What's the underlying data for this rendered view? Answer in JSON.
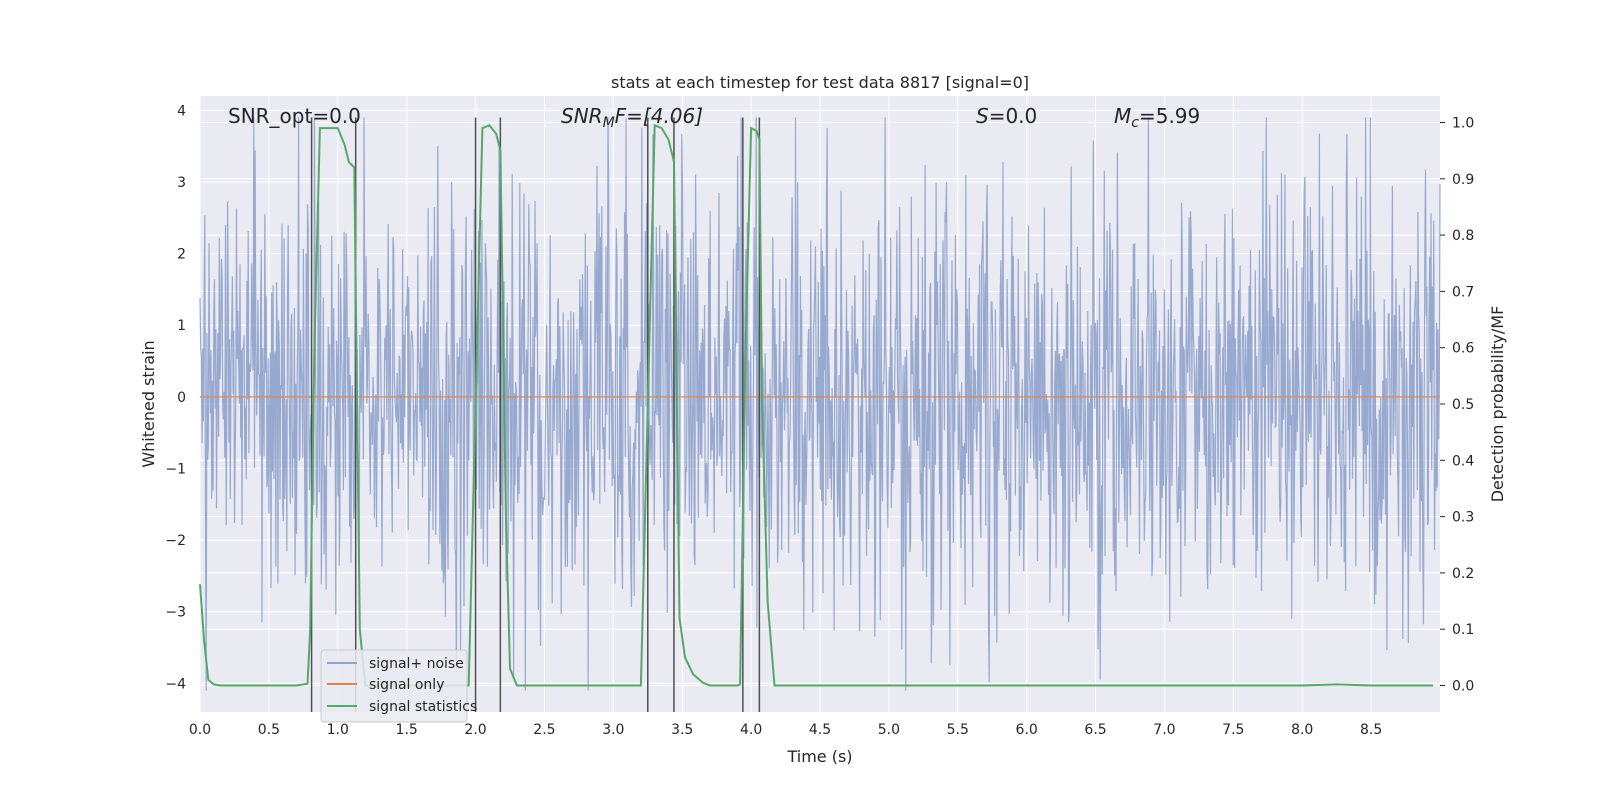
{
  "chart_data": {
    "type": "line",
    "title": "stats at each timestep for test data 8817 [signal=0]",
    "xlabel": "Time (s)",
    "ylabel": "Whitened strain",
    "y2label": "Detection probability/MF",
    "xlim": [
      0,
      9.0
    ],
    "ylim": [
      -4.4,
      4.2
    ],
    "y2lim": [
      -0.047,
      1.047
    ],
    "xticks": [
      "0.0",
      "0.5",
      "1.0",
      "1.5",
      "2.0",
      "2.5",
      "3.0",
      "3.5",
      "4.0",
      "4.5",
      "5.0",
      "5.5",
      "6.0",
      "6.5",
      "7.0",
      "7.5",
      "8.0",
      "8.5"
    ],
    "yticks": [
      "4",
      "3",
      "2",
      "1",
      "0",
      "−1",
      "−2",
      "−3",
      "−4"
    ],
    "y2ticks": [
      "1.0",
      "0.9",
      "0.8",
      "0.7",
      "0.6",
      "0.5",
      "0.4",
      "0.3",
      "0.2",
      "0.1",
      "0.0"
    ],
    "grid": true,
    "legend_position": "lower-left",
    "colors": {
      "noise": "#8fa2cc",
      "signal": "#dd8452",
      "stats": "#55a868",
      "vline": "#505050",
      "bg": "#eaeaf2"
    },
    "annotations": {
      "snr_opt": "SNR_opt=0.0",
      "snr_mf_main": "SNR",
      "snr_mf_sub": "M",
      "snr_mf_rest": "F=[4.06]",
      "s_main": "S",
      "s_rest": "=0.0",
      "mc_main": "M",
      "mc_sub": "c",
      "mc_rest": "=5.99"
    },
    "series": [
      {
        "name": "signal+ noise",
        "kind": "noise",
        "amplitude": 1.5,
        "seed": 8817
      },
      {
        "name": "signal only",
        "kind": "flat",
        "y": 0
      },
      {
        "name": "signal statistics",
        "axis": "right",
        "x": [
          0.0,
          0.03,
          0.06,
          0.1,
          0.15,
          0.2,
          0.3,
          0.4,
          0.5,
          0.6,
          0.7,
          0.78,
          0.8,
          0.83,
          0.87,
          0.9,
          0.95,
          1.0,
          1.05,
          1.08,
          1.12,
          1.14,
          1.16,
          1.2,
          1.4,
          1.6,
          1.8,
          1.95,
          2.0,
          2.05,
          2.1,
          2.15,
          2.18,
          2.22,
          2.25,
          2.3,
          2.5,
          2.7,
          2.9,
          3.1,
          3.2,
          3.25,
          3.3,
          3.35,
          3.4,
          3.44,
          3.48,
          3.52,
          3.58,
          3.65,
          3.7,
          3.8,
          3.9,
          3.92,
          3.96,
          4.0,
          4.04,
          4.06,
          4.08,
          4.12,
          4.17,
          4.2,
          4.5,
          5.0,
          5.5,
          6.0,
          6.5,
          7.0,
          7.5,
          8.0,
          8.25,
          8.5,
          8.95
        ],
        "y": [
          0.18,
          0.08,
          0.01,
          0.002,
          0.0,
          0.0,
          0.0,
          0.0,
          0.0,
          0.0,
          0.0,
          0.003,
          0.1,
          0.6,
          0.99,
          0.99,
          0.99,
          0.99,
          0.96,
          0.93,
          0.92,
          0.5,
          0.1,
          0.0,
          0.0,
          0.0,
          0.0,
          0.0,
          0.5,
          0.99,
          0.995,
          0.98,
          0.95,
          0.3,
          0.03,
          0.0,
          0.0,
          0.0,
          0.0,
          0.0,
          0.0,
          0.5,
          0.995,
          0.99,
          0.97,
          0.93,
          0.12,
          0.05,
          0.02,
          0.005,
          0.0,
          0.0,
          0.0,
          0.002,
          0.6,
          0.99,
          0.985,
          0.97,
          0.5,
          0.15,
          0.0,
          0.0,
          0.0,
          0.0,
          0.0,
          0.0,
          0.0,
          0.0,
          0.0,
          0.0,
          0.002,
          0.0,
          0.0
        ]
      }
    ],
    "vlines_right": [
      [
        0.81,
        1.0
      ],
      [
        1.12,
        1.0
      ],
      [
        2.0,
        1.0
      ],
      [
        2.18,
        1.0
      ],
      [
        3.25,
        1.0
      ],
      [
        3.44,
        1.0
      ],
      [
        3.94,
        1.0
      ],
      [
        4.06,
        1.0
      ]
    ],
    "vlines_left": [
      [
        0.81,
        3.9
      ],
      [
        1.13,
        3.9
      ],
      [
        2.0,
        3.9
      ],
      [
        2.18,
        3.9
      ],
      [
        3.25,
        3.9
      ],
      [
        3.44,
        3.9
      ],
      [
        3.94,
        3.9
      ],
      [
        4.06,
        3.9
      ]
    ]
  }
}
